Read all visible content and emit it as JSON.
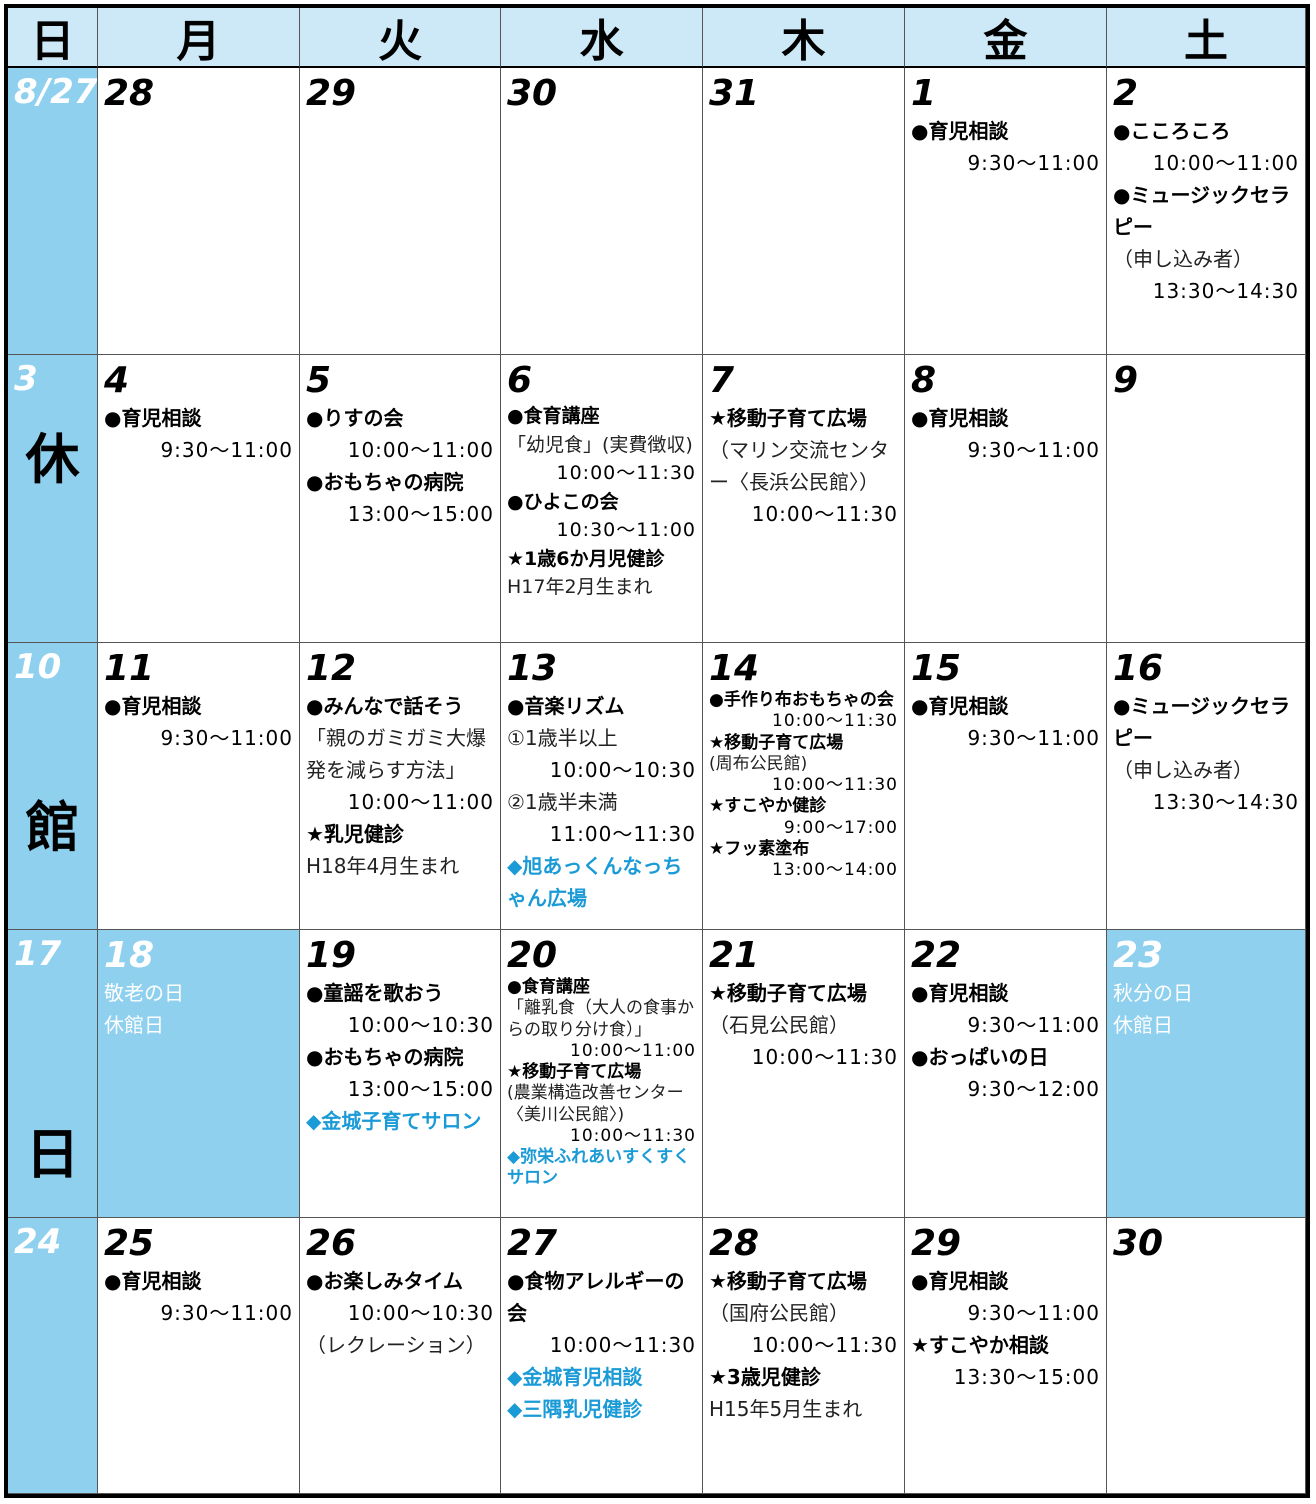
{
  "header": [
    "日",
    "月",
    "火",
    "水",
    "木",
    "金",
    "土"
  ],
  "weeks": [
    {
      "sunday": {
        "date": "8/27"
      },
      "days": [
        {
          "date": "28",
          "items": []
        },
        {
          "date": "29",
          "items": []
        },
        {
          "date": "30",
          "items": []
        },
        {
          "date": "31",
          "items": []
        },
        {
          "date": "1",
          "items": [
            {
              "title": "●育児相談"
            },
            {
              "time": "9:30〜11:00"
            }
          ]
        },
        {
          "date": "2",
          "items": [
            {
              "title": "●こころころ"
            },
            {
              "time": "10:00〜11:00"
            },
            {
              "title": "●ミュージックセラピー"
            },
            {
              "note": "（申し込み者）"
            },
            {
              "time": "13:30〜14:30"
            }
          ]
        }
      ]
    },
    {
      "sunday": {
        "date": "3",
        "mark": "休"
      },
      "days": [
        {
          "date": "4",
          "items": [
            {
              "title": "●育児相談"
            },
            {
              "time": "9:30〜11:00"
            }
          ]
        },
        {
          "date": "5",
          "items": [
            {
              "title": "●りすの会"
            },
            {
              "time": "10:00〜11:00"
            },
            {
              "title": "●おもちゃの病院"
            },
            {
              "time": "13:00〜15:00"
            }
          ]
        },
        {
          "date": "6",
          "items": [
            {
              "title": "●食育講座"
            },
            {
              "note": "「幼児食」(実費徴収)"
            },
            {
              "time": "10:00〜11:30"
            },
            {
              "title": "●ひよこの会"
            },
            {
              "time": "10:30〜11:00"
            },
            {
              "title": "★1歳6か月児健診"
            },
            {
              "note": "H17年2月生まれ"
            }
          ]
        },
        {
          "date": "7",
          "items": [
            {
              "title": "★移動子育て広場"
            },
            {
              "note": "（マリン交流センター〈長浜公民館〉）"
            },
            {
              "time": "10:00〜11:30"
            }
          ]
        },
        {
          "date": "8",
          "items": [
            {
              "title": "●育児相談"
            },
            {
              "time": "9:30〜11:00"
            }
          ]
        },
        {
          "date": "9",
          "items": []
        }
      ]
    },
    {
      "sunday": {
        "date": "10",
        "mark": "館"
      },
      "days": [
        {
          "date": "11",
          "items": [
            {
              "title": "●育児相談"
            },
            {
              "time": "9:30〜11:00"
            }
          ]
        },
        {
          "date": "12",
          "items": [
            {
              "title": "●みんなで話そう"
            },
            {
              "note": "「親のガミガミ大爆発を減らす方法」"
            },
            {
              "time": "10:00〜11:00"
            },
            {
              "title": "★乳児健診"
            },
            {
              "note": "H18年4月生まれ"
            }
          ]
        },
        {
          "date": "13",
          "items": [
            {
              "title": "●音楽リズム"
            },
            {
              "note": "①1歳半以上"
            },
            {
              "time": "10:00〜10:30"
            },
            {
              "note": "②1歳半未満"
            },
            {
              "time": "11:00〜11:30"
            },
            {
              "title": "◆旭あっくんなっちゃん広場"
            }
          ]
        },
        {
          "date": "14",
          "items": [
            {
              "title": "●手作り布おもちゃの会"
            },
            {
              "time": "10:00〜11:30"
            },
            {
              "title": "★移動子育て広場"
            },
            {
              "note": "(周布公民館)"
            },
            {
              "time": "10:00〜11:30"
            },
            {
              "title": "★すこやか健診"
            },
            {
              "time": "9:00〜17:00"
            },
            {
              "title": "★フッ素塗布"
            },
            {
              "time": "13:00〜14:00"
            }
          ]
        },
        {
          "date": "15",
          "items": [
            {
              "title": "●育児相談"
            },
            {
              "time": "9:30〜11:00"
            }
          ]
        },
        {
          "date": "16",
          "items": [
            {
              "title": "●ミュージックセラピー"
            },
            {
              "note": "（申し込み者）"
            },
            {
              "time": "13:30〜14:30"
            }
          ]
        }
      ]
    },
    {
      "sunday": {
        "date": "17",
        "mark": "日"
      },
      "days": [
        {
          "date": "18",
          "holiday": true,
          "items": [
            {
              "note": "敬老の日"
            },
            {
              "note": "休館日"
            }
          ]
        },
        {
          "date": "19",
          "items": [
            {
              "title": "●童謡を歌おう"
            },
            {
              "time": "10:00〜10:30"
            },
            {
              "title": "●おもちゃの病院"
            },
            {
              "time": "13:00〜15:00"
            },
            {
              "title": "◆金城子育てサロン"
            }
          ]
        },
        {
          "date": "20",
          "items": [
            {
              "title": "●食育講座"
            },
            {
              "note": "「離乳食（大人の食事からの取り分け食）」"
            },
            {
              "time": "10:00〜11:00"
            },
            {
              "title": "★移動子育て広場"
            },
            {
              "note": "(農業構造改善センター〈美川公民館〉)"
            },
            {
              "time": "10:00〜11:30"
            },
            {
              "title": "◆弥栄ふれあいすくすくサロン"
            }
          ]
        },
        {
          "date": "21",
          "items": [
            {
              "title": "★移動子育て広場"
            },
            {
              "note": "（石見公民館）"
            },
            {
              "time": "10:00〜11:30"
            }
          ]
        },
        {
          "date": "22",
          "items": [
            {
              "title": "●育児相談"
            },
            {
              "time": "9:30〜11:00"
            },
            {
              "title": "●おっぱいの日"
            },
            {
              "time": "9:30〜12:00"
            }
          ]
        },
        {
          "date": "23",
          "holiday": true,
          "items": [
            {
              "note": "秋分の日"
            },
            {
              "note": "休館日"
            }
          ]
        }
      ]
    },
    {
      "sunday": {
        "date": "24"
      },
      "days": [
        {
          "date": "25",
          "items": [
            {
              "title": "●育児相談"
            },
            {
              "time": "9:30〜11:00"
            }
          ]
        },
        {
          "date": "26",
          "items": [
            {
              "title": "●お楽しみタイム"
            },
            {
              "time": "10:00〜10:30"
            },
            {
              "note": "（レクレーション）"
            }
          ]
        },
        {
          "date": "27",
          "items": [
            {
              "title": "●食物アレルギーの会"
            },
            {
              "time": "10:00〜11:30"
            },
            {
              "title": "◆金城育児相談"
            },
            {
              "title": "◆三隅乳児健診"
            }
          ]
        },
        {
          "date": "28",
          "items": [
            {
              "title": "★移動子育て広場"
            },
            {
              "note": "（国府公民館）"
            },
            {
              "time": "10:00〜11:30"
            },
            {
              "title": "★3歳児健診"
            },
            {
              "note": "H15年5月生まれ"
            }
          ]
        },
        {
          "date": "29",
          "items": [
            {
              "title": "●育児相談"
            },
            {
              "time": "9:30〜11:00"
            },
            {
              "title": "★すこやか相談"
            },
            {
              "time": "13:30〜15:00"
            }
          ]
        },
        {
          "date": "30",
          "items": []
        }
      ]
    }
  ]
}
